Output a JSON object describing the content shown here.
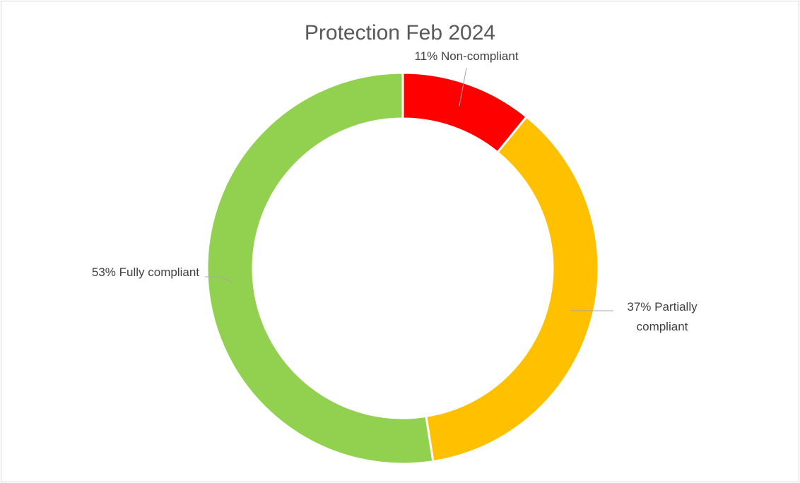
{
  "chart_data": {
    "type": "donut",
    "title": "Protection Feb 2024",
    "categories": [
      "Non-compliant",
      "Partially compliant",
      "Fully compliant"
    ],
    "values": [
      11,
      37,
      53
    ],
    "value_labels": [
      "11%",
      "37%",
      "53%"
    ],
    "colors": [
      "#ff0000",
      "#ffc000",
      "#92d050"
    ]
  }
}
